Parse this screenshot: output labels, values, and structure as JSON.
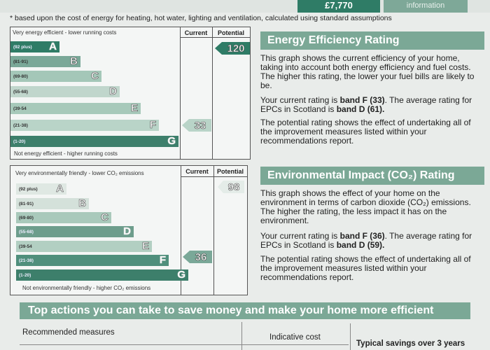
{
  "top": {
    "cost": "£7,770",
    "info": "information"
  },
  "footnote": "* based upon the cost of energy for heating, hot water, lighting and ventilation, calculated using standard assumptions",
  "energy_chart": {
    "top_label": "Very energy efficient - lower running costs",
    "bottom_label": "Not energy efficient - higher running costs",
    "col_current": "Current",
    "col_potential": "Potential",
    "current": "33",
    "potential": "120",
    "bands": [
      {
        "range": "(92 plus)",
        "letter": "A"
      },
      {
        "range": "(81-91)",
        "letter": "B"
      },
      {
        "range": "(69-80)",
        "letter": "C"
      },
      {
        "range": "(55-68)",
        "letter": "D"
      },
      {
        "range": "(39-54",
        "letter": "E"
      },
      {
        "range": "(21-38)",
        "letter": "F"
      },
      {
        "range": "(1-20)",
        "letter": "G"
      }
    ]
  },
  "env_chart": {
    "top_label": "Very environmentally friendly - lower CO₂ emissions",
    "bottom_label": "Not environmentally friendly - higher CO₂ emissions",
    "col_current": "Current",
    "col_potential": "Potential",
    "current": "36",
    "potential": "98",
    "bands": [
      {
        "range": "(92 plus)",
        "letter": "A"
      },
      {
        "range": "(81-91)",
        "letter": "B"
      },
      {
        "range": "(69-80)",
        "letter": "C"
      },
      {
        "range": "(55-68)",
        "letter": "D"
      },
      {
        "range": "(39-54",
        "letter": "E"
      },
      {
        "range": "(21-38)",
        "letter": "F"
      },
      {
        "range": "(1-20)",
        "letter": "G"
      }
    ]
  },
  "energy_text": {
    "heading": "Energy Efficiency Rating",
    "p1": "This graph shows the current efficiency of your home, taking into account both energy efficiency and fuel costs. The higher this rating, the lower your fuel bills are likely to be.",
    "p2_a": "Your current rating is ",
    "p2_b": "band F (33)",
    "p2_c": ". The average rating for EPCs in Scotland is ",
    "p2_d": "band D (61).",
    "p3": "The potential rating shows the effect of undertaking all of the improvement measures listed within your recommendations report."
  },
  "env_text": {
    "heading": "Environmental Impact (CO₂) Rating",
    "p1": "This graph shows the effect of your home on the environment in terms of carbon dioxide (CO₂) emissions. The higher the rating, the less impact it has on the environment.",
    "p2_a": "Your current rating is ",
    "p2_b": "band F (36)",
    "p2_c": ". The average rating for EPCs in Scotland is ",
    "p2_d": "band D (59).",
    "p3": "The potential rating shows the effect of undertaking all of the improvement measures listed within your recommendations report."
  },
  "actions": {
    "banner": "Top actions you can take to save money and make your home more efficient",
    "col1": "Recommended measures",
    "col2": "Indicative cost",
    "col3": "Typical savings over 3 years"
  },
  "colors": {
    "band_A": "#2f7c66",
    "band_B": "#4f8f7c",
    "band_C": "#7aa898",
    "band_D": "#6d9d8c",
    "band_E": "#9ec1b3",
    "band_F": "#a8cdbd",
    "band_G": "#3d7f6b",
    "heading": "#7ba896"
  }
}
